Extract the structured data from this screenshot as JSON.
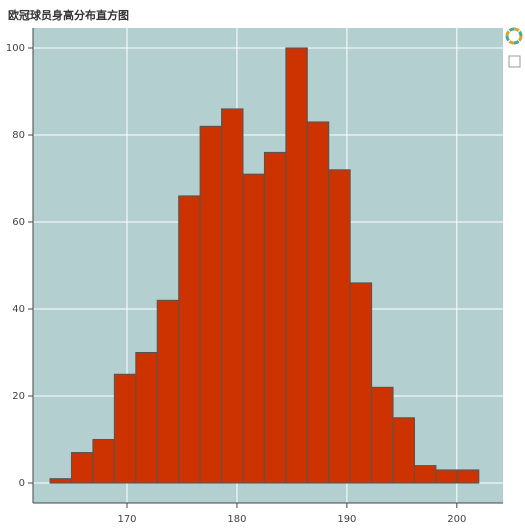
{
  "chart_data": {
    "type": "histogram",
    "title": "欧冠球员身高分布直方图",
    "bins": [
      163,
      164.95,
      166.9,
      168.85,
      170.8,
      172.75,
      174.7,
      176.65,
      178.6,
      180.55,
      182.5,
      184.45,
      186.4,
      188.35,
      190.3,
      192.25,
      194.2,
      196.15,
      198.1,
      200.05,
      202
    ],
    "values": [
      1,
      7,
      10,
      25,
      30,
      42,
      66,
      82,
      86,
      71,
      76,
      100,
      83,
      72,
      46,
      22,
      15,
      4,
      3,
      3
    ],
    "color": "#cc3300",
    "edge_color": "#555555",
    "background": "#b4cfd0",
    "grid": true,
    "xlim": [
      161.45,
      204.2
    ],
    "xticks": [
      170,
      180,
      190,
      200
    ],
    "ylim": [
      -4.6,
      104.6
    ],
    "yticks": [
      0,
      20,
      40,
      60,
      80,
      100
    ]
  }
}
